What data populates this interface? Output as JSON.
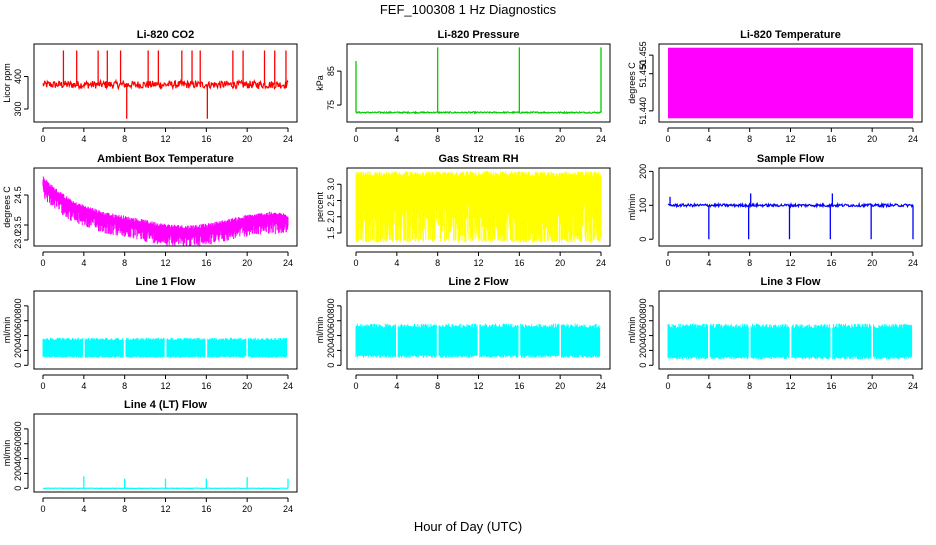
{
  "figure": {
    "title": "FEF_100308  1 Hz Diagnostics",
    "xlabel": "Hour of Day (UTC)"
  },
  "colors": {
    "red": "#ff0000",
    "green": "#00cc00",
    "magenta": "#ff00ff",
    "yellow": "#ffff00",
    "blue": "#0000ff",
    "cyan": "#00ffff"
  },
  "chart_data": [
    {
      "type": "line",
      "title": "Li-820 CO2",
      "ylabel": "Licor ppm",
      "color": "red",
      "x_ticks": [
        "0",
        "4",
        "8",
        "12",
        "16",
        "20",
        "24"
      ],
      "xlim": [
        0,
        24
      ],
      "y_ticks": [
        "300",
        "400"
      ],
      "ylim": [
        260,
        500
      ],
      "baseline": 375,
      "noise": 12,
      "spikes": [
        [
          2,
          480
        ],
        [
          3.3,
          480
        ],
        [
          5.4,
          480
        ],
        [
          6.3,
          480
        ],
        [
          7.6,
          480
        ],
        [
          8.2,
          270
        ],
        [
          10.3,
          480
        ],
        [
          11.3,
          480
        ],
        [
          13.6,
          480
        ],
        [
          14.6,
          480
        ],
        [
          15.4,
          480
        ],
        [
          16.1,
          270
        ],
        [
          18.6,
          480
        ],
        [
          19.6,
          480
        ],
        [
          21.7,
          480
        ],
        [
          22.7,
          480
        ],
        [
          23.8,
          480
        ]
      ]
    },
    {
      "type": "line",
      "title": "Li-820 Pressure",
      "ylabel": "kPa",
      "color": "green",
      "x_ticks": [
        "0",
        "4",
        "8",
        "12",
        "16",
        "20",
        "24"
      ],
      "xlim": [
        0,
        24
      ],
      "y_ticks": [
        "75",
        "85"
      ],
      "ylim": [
        70,
        93
      ],
      "baseline": 72.8,
      "noise": 0.2,
      "spikes": [
        [
          0,
          88
        ],
        [
          8,
          92
        ],
        [
          16,
          92
        ],
        [
          24,
          92
        ]
      ]
    },
    {
      "type": "area",
      "title": "Li-820 Temperature",
      "ylabel": "degrees C",
      "color": "magenta",
      "x_ticks": [
        "0",
        "4",
        "8",
        "12",
        "16",
        "20",
        "24"
      ],
      "xlim": [
        0,
        24
      ],
      "y_ticks": [
        "51.440",
        "51.450",
        "51.455"
      ],
      "ylim": [
        51.437,
        51.458
      ],
      "band": [
        51.438,
        51.457
      ]
    },
    {
      "type": "line",
      "title": "Ambient Box Temperature",
      "ylabel": "degrees C",
      "color": "magenta",
      "x_ticks": [
        "0",
        "4",
        "8",
        "12",
        "16",
        "20",
        "24"
      ],
      "xlim": [
        0,
        24
      ],
      "y_ticks": [
        "23.0",
        "23.5",
        "24.5"
      ],
      "ylim": [
        22.8,
        25.4
      ],
      "trend": [
        [
          0,
          24.95
        ],
        [
          1,
          24.6
        ],
        [
          3,
          24.1
        ],
        [
          6,
          23.75
        ],
        [
          9,
          23.55
        ],
        [
          12,
          23.35
        ],
        [
          14,
          23.3
        ],
        [
          16,
          23.35
        ],
        [
          18,
          23.5
        ],
        [
          20,
          23.65
        ],
        [
          22,
          23.75
        ],
        [
          24,
          23.7
        ]
      ],
      "band_low": 0.45,
      "band_high": 0.15
    },
    {
      "type": "area",
      "title": "Gas Stream RH",
      "ylabel": "percent",
      "color": "yellow",
      "x_ticks": [
        "0",
        "4",
        "8",
        "12",
        "16",
        "20",
        "24"
      ],
      "xlim": [
        0,
        24
      ],
      "y_ticks": [
        "1.5",
        "2.0",
        "2.5",
        "3.0"
      ],
      "ylim": [
        1.1,
        3.5
      ],
      "band": [
        1.2,
        3.4
      ],
      "dense_gaps": true
    },
    {
      "type": "line",
      "title": "Sample Flow",
      "ylabel": "ml/min",
      "color": "blue",
      "x_ticks": [
        "0",
        "4",
        "8",
        "12",
        "16",
        "20",
        "24"
      ],
      "xlim": [
        0,
        24
      ],
      "y_ticks": [
        "0",
        "100",
        "200"
      ],
      "ylim": [
        -20,
        210
      ],
      "baseline": 100,
      "noise": 4,
      "spikes": [
        [
          0.2,
          125
        ],
        [
          4,
          0
        ],
        [
          7.9,
          0
        ],
        [
          8.1,
          135
        ],
        [
          11.9,
          0
        ],
        [
          15.9,
          0
        ],
        [
          16.1,
          135
        ],
        [
          19.9,
          0
        ],
        [
          24,
          0
        ]
      ]
    },
    {
      "type": "area",
      "title": "Line 1 Flow",
      "ylabel": "ml/min",
      "color": "cyan",
      "x_ticks": [
        "0",
        "4",
        "8",
        "12",
        "16",
        "20",
        "24"
      ],
      "xlim": [
        0,
        24
      ],
      "y_ticks": [
        "0",
        "200",
        "400",
        "600",
        "800"
      ],
      "ylim": [
        -50,
        1000
      ],
      "band": [
        100,
        370
      ],
      "gaps": [
        4,
        8,
        12,
        16,
        20,
        24
      ]
    },
    {
      "type": "area",
      "title": "Line 2 Flow",
      "ylabel": "ml/min",
      "color": "cyan",
      "x_ticks": [
        "0",
        "4",
        "8",
        "12",
        "16",
        "20",
        "24"
      ],
      "xlim": [
        0,
        24
      ],
      "y_ticks": [
        "0",
        "200",
        "400",
        "600",
        "800"
      ],
      "ylim": [
        -50,
        1000
      ],
      "band": [
        100,
        560
      ],
      "gaps": [
        4,
        8,
        12,
        16,
        20,
        24
      ]
    },
    {
      "type": "area",
      "title": "Line 3 Flow",
      "ylabel": "ml/min",
      "color": "cyan",
      "x_ticks": [
        "0",
        "4",
        "8",
        "12",
        "16",
        "20",
        "24"
      ],
      "xlim": [
        0,
        24
      ],
      "y_ticks": [
        "0",
        "200",
        "400",
        "600",
        "800"
      ],
      "ylim": [
        -50,
        1000
      ],
      "band": [
        80,
        560
      ],
      "gaps": [
        4,
        8,
        12,
        16,
        20,
        24
      ]
    },
    {
      "type": "line",
      "title": "Line 4 (LT) Flow",
      "ylabel": "ml/min",
      "color": "cyan",
      "x_ticks": [
        "0",
        "4",
        "8",
        "12",
        "16",
        "20",
        "24"
      ],
      "xlim": [
        0,
        24
      ],
      "y_ticks": [
        "0",
        "200",
        "400",
        "600",
        "800"
      ],
      "ylim": [
        -50,
        1000
      ],
      "baseline": 0,
      "noise": 3,
      "spikes": [
        [
          4,
          160
        ],
        [
          8,
          130
        ],
        [
          12,
          130
        ],
        [
          16,
          130
        ],
        [
          20,
          150
        ],
        [
          24,
          130
        ]
      ]
    }
  ]
}
